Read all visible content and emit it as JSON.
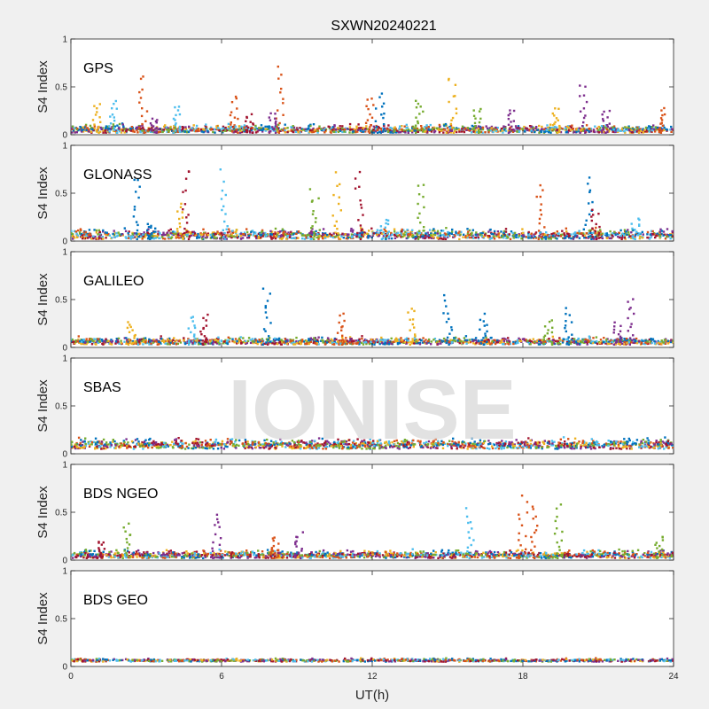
{
  "title": "SXWN20240221",
  "watermark": "IONISE",
  "colors": [
    "#0072BD",
    "#D95319",
    "#EDB120",
    "#7E2F8E",
    "#77AC30",
    "#4DBEEE",
    "#A2142F"
  ],
  "chart_data": {
    "type": "scatter",
    "title": "SXWN20240221",
    "xlabel": "UT(h)",
    "ylabel": "S4 Index",
    "xlim": [
      0,
      24
    ],
    "ylim": [
      0,
      1
    ],
    "xticks": [
      0,
      6,
      12,
      18,
      24
    ],
    "yticks": [
      0,
      0.5,
      1
    ],
    "grid": false,
    "panels": [
      {
        "name": "GPS",
        "baseline": [
          0.02,
          0.12
        ],
        "spikes": [
          {
            "x": 1.0,
            "peak": 0.35,
            "c": 2
          },
          {
            "x": 1.7,
            "peak": 0.38,
            "c": 5
          },
          {
            "x": 2.9,
            "peak": 0.67,
            "c": 1
          },
          {
            "x": 3.3,
            "peak": 0.18,
            "c": 3
          },
          {
            "x": 4.2,
            "peak": 0.32,
            "c": 5
          },
          {
            "x": 6.5,
            "peak": 0.42,
            "c": 1
          },
          {
            "x": 7.1,
            "peak": 0.22,
            "c": 6
          },
          {
            "x": 8.3,
            "peak": 0.75,
            "c": 1
          },
          {
            "x": 8.0,
            "peak": 0.25,
            "c": 3
          },
          {
            "x": 11.9,
            "peak": 0.42,
            "c": 1
          },
          {
            "x": 12.3,
            "peak": 0.46,
            "c": 0
          },
          {
            "x": 13.9,
            "peak": 0.4,
            "c": 4
          },
          {
            "x": 15.2,
            "peak": 0.65,
            "c": 2
          },
          {
            "x": 16.2,
            "peak": 0.3,
            "c": 4
          },
          {
            "x": 17.6,
            "peak": 0.28,
            "c": 3
          },
          {
            "x": 19.3,
            "peak": 0.3,
            "c": 2
          },
          {
            "x": 20.4,
            "peak": 0.58,
            "c": 3
          },
          {
            "x": 21.3,
            "peak": 0.27,
            "c": 3
          },
          {
            "x": 23.6,
            "peak": 0.28,
            "c": 1
          }
        ]
      },
      {
        "name": "GLONASS",
        "baseline": [
          0.02,
          0.15
        ],
        "spikes": [
          {
            "x": 2.6,
            "peak": 0.72,
            "c": 0
          },
          {
            "x": 3.2,
            "peak": 0.2,
            "c": 0
          },
          {
            "x": 4.3,
            "peak": 0.42,
            "c": 2
          },
          {
            "x": 4.6,
            "peak": 0.82,
            "c": 6
          },
          {
            "x": 6.1,
            "peak": 0.75,
            "c": 5
          },
          {
            "x": 9.7,
            "peak": 0.57,
            "c": 4
          },
          {
            "x": 10.6,
            "peak": 0.75,
            "c": 2
          },
          {
            "x": 11.5,
            "peak": 0.78,
            "c": 6
          },
          {
            "x": 12.5,
            "peak": 0.25,
            "c": 5
          },
          {
            "x": 13.9,
            "peak": 0.65,
            "c": 4
          },
          {
            "x": 18.7,
            "peak": 0.65,
            "c": 1
          },
          {
            "x": 20.6,
            "peak": 0.75,
            "c": 0
          },
          {
            "x": 20.9,
            "peak": 0.35,
            "c": 6
          },
          {
            "x": 22.5,
            "peak": 0.25,
            "c": 5
          }
        ]
      },
      {
        "name": "GALILEO",
        "baseline": [
          0.03,
          0.12
        ],
        "spikes": [
          {
            "x": 2.4,
            "peak": 0.28,
            "c": 2
          },
          {
            "x": 4.8,
            "peak": 0.35,
            "c": 5
          },
          {
            "x": 5.3,
            "peak": 0.35,
            "c": 6
          },
          {
            "x": 7.8,
            "peak": 0.68,
            "c": 0
          },
          {
            "x": 10.8,
            "peak": 0.38,
            "c": 1
          },
          {
            "x": 13.6,
            "peak": 0.45,
            "c": 2
          },
          {
            "x": 15.0,
            "peak": 0.56,
            "c": 0
          },
          {
            "x": 16.4,
            "peak": 0.36,
            "c": 0
          },
          {
            "x": 19.0,
            "peak": 0.3,
            "c": 4
          },
          {
            "x": 19.8,
            "peak": 0.43,
            "c": 0
          },
          {
            "x": 21.8,
            "peak": 0.27,
            "c": 3
          },
          {
            "x": 22.3,
            "peak": 0.55,
            "c": 3
          }
        ]
      },
      {
        "name": "SBAS",
        "baseline": [
          0.05,
          0.18
        ],
        "spikes": []
      },
      {
        "name": "BDS NGEO",
        "baseline": [
          0.02,
          0.12
        ],
        "spikes": [
          {
            "x": 1.2,
            "peak": 0.22,
            "c": 6
          },
          {
            "x": 2.2,
            "peak": 0.42,
            "c": 4
          },
          {
            "x": 5.8,
            "peak": 0.55,
            "c": 3
          },
          {
            "x": 8.1,
            "peak": 0.25,
            "c": 1
          },
          {
            "x": 9.1,
            "peak": 0.3,
            "c": 3
          },
          {
            "x": 15.9,
            "peak": 0.55,
            "c": 5
          },
          {
            "x": 18.0,
            "peak": 0.7,
            "c": 1
          },
          {
            "x": 18.5,
            "peak": 0.65,
            "c": 1
          },
          {
            "x": 19.4,
            "peak": 0.6,
            "c": 4
          },
          {
            "x": 23.4,
            "peak": 0.27,
            "c": 4
          }
        ]
      },
      {
        "name": "BDS GEO",
        "baseline": [
          0.05,
          0.09
        ],
        "spikes": []
      }
    ]
  }
}
